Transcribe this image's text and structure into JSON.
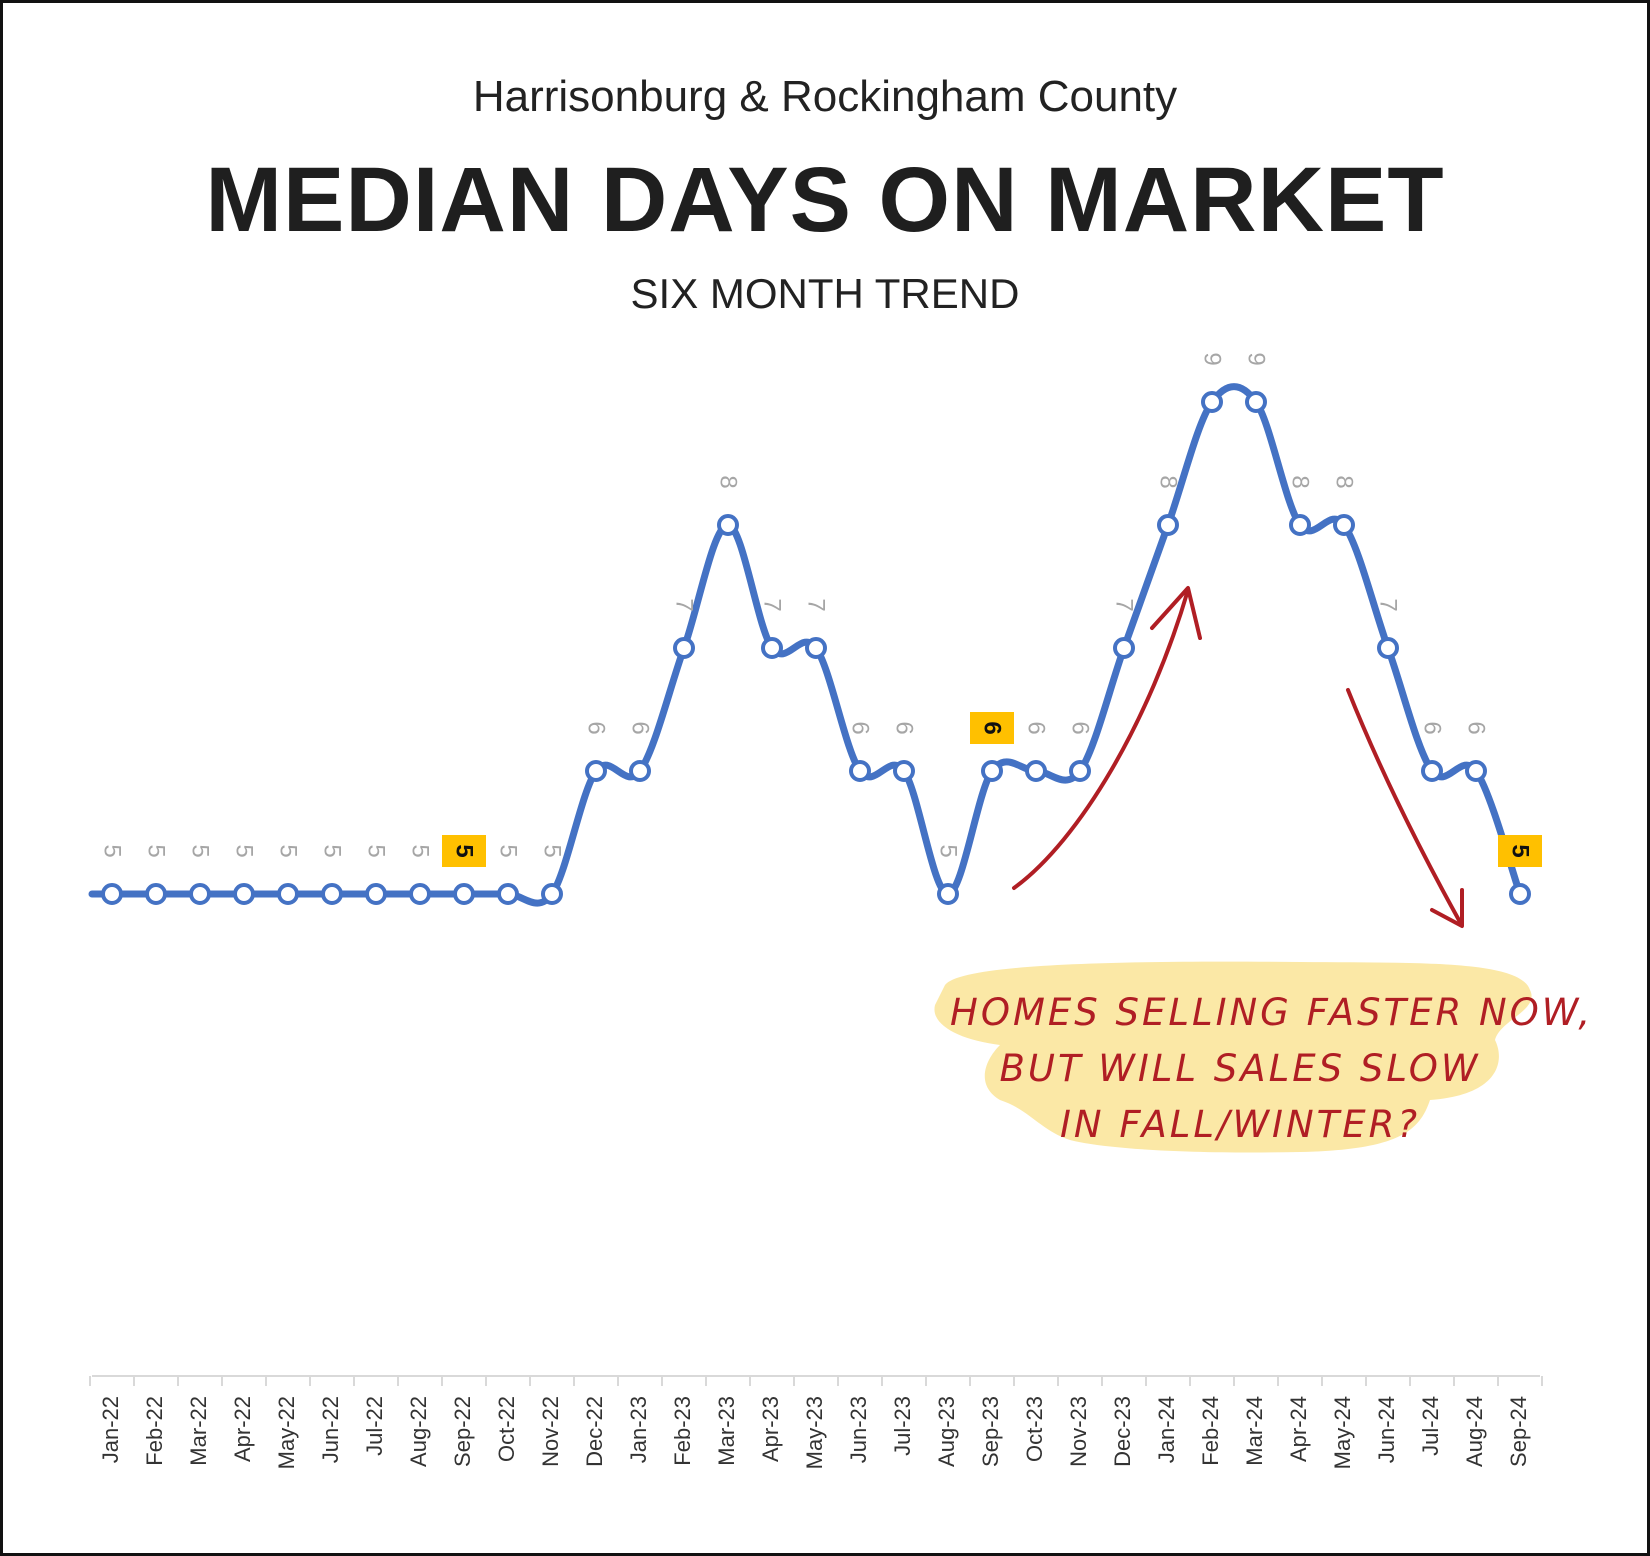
{
  "chart_data": {
    "type": "line",
    "supertitle": "Harrisonburg & Rockingham County",
    "title": "MEDIAN DAYS ON MARKET",
    "subtitle": "SIX MONTH TREND",
    "categories": [
      "Jan-22",
      "Feb-22",
      "Mar-22",
      "Apr-22",
      "May-22",
      "Jun-22",
      "Jul-22",
      "Aug-22",
      "Sep-22",
      "Oct-22",
      "Nov-22",
      "Dec-22",
      "Jan-23",
      "Feb-23",
      "Mar-23",
      "Apr-23",
      "May-23",
      "Jun-23",
      "Jul-23",
      "Aug-23",
      "Sep-23",
      "Oct-23",
      "Nov-23",
      "Dec-23",
      "Jan-24",
      "Feb-24",
      "Mar-24",
      "Apr-24",
      "May-24",
      "Jun-24",
      "Jul-24",
      "Aug-24",
      "Sep-24"
    ],
    "series": [
      {
        "values": [
          5,
          5,
          5,
          5,
          5,
          5,
          5,
          5,
          5,
          5,
          5,
          6,
          6,
          7,
          8,
          7,
          7,
          6,
          6,
          5,
          6,
          6,
          6,
          7,
          8,
          9,
          9,
          8,
          8,
          7,
          6,
          6,
          5
        ],
        "color": "#4472c4"
      }
    ],
    "highlighted_labels": [
      "Sep-22",
      "Sep-23",
      "Sep-24"
    ],
    "highlight_color": "#ffc000",
    "data_label_color": "#a6a6a6",
    "ylim": [
      4,
      9.5
    ],
    "legend": "none",
    "grid": false
  },
  "annotation": {
    "lines": [
      "HOMES SELLING FASTER NOW,",
      "BUT WILL SALES SLOW",
      "IN FALL/WINTER?"
    ],
    "text_color": "#b01e24",
    "background_color": "#fbe8a6",
    "arrow_color": "#b01e24"
  }
}
